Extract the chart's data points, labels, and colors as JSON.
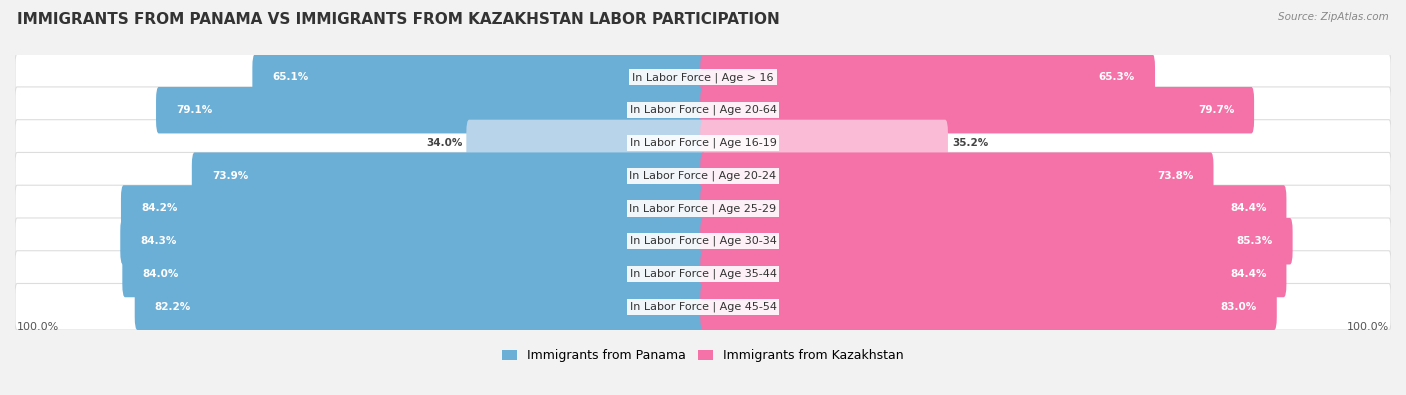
{
  "title": "IMMIGRANTS FROM PANAMA VS IMMIGRANTS FROM KAZAKHSTAN LABOR PARTICIPATION",
  "source": "Source: ZipAtlas.com",
  "categories": [
    "In Labor Force | Age > 16",
    "In Labor Force | Age 20-64",
    "In Labor Force | Age 16-19",
    "In Labor Force | Age 20-24",
    "In Labor Force | Age 25-29",
    "In Labor Force | Age 30-34",
    "In Labor Force | Age 35-44",
    "In Labor Force | Age 45-54"
  ],
  "panama_values": [
    65.1,
    79.1,
    34.0,
    73.9,
    84.2,
    84.3,
    84.0,
    82.2
  ],
  "kazakhstan_values": [
    65.3,
    79.7,
    35.2,
    73.8,
    84.4,
    85.3,
    84.4,
    83.0
  ],
  "panama_color": "#6baed6",
  "panama_color_light": "#b8d4ea",
  "kazakhstan_color": "#f472a8",
  "kazakhstan_color_light": "#f9bbd5",
  "background_color": "#f2f2f2",
  "row_bg_color": "#ffffff",
  "row_edge_color": "#dddddd",
  "title_fontsize": 11,
  "label_fontsize": 8,
  "value_fontsize": 7.5,
  "legend_fontsize": 9,
  "max_val": 100.0,
  "legend_panama": "Immigrants from Panama",
  "legend_kazakhstan": "Immigrants from Kazakhstan"
}
